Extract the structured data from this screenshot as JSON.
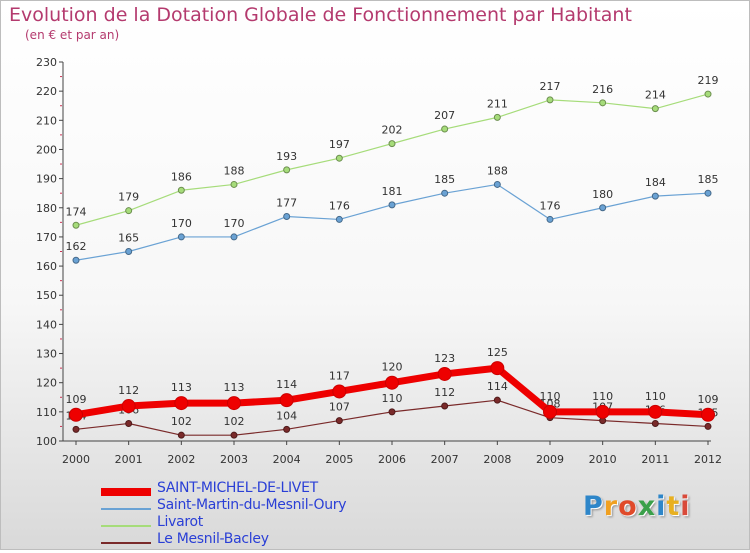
{
  "header": {
    "title": "Evolution de la Dotation Globale de Fonctionnement par Habitant",
    "subtitle": "(en € et par an)"
  },
  "brand": {
    "text": "Proxiti",
    "letter_colors": [
      "#2e86c9",
      "#f0a020",
      "#e04b2a",
      "#3aa04a",
      "#2e86c9",
      "#e8b020",
      "#d94a3a"
    ]
  },
  "chart_data": {
    "type": "line",
    "title": "Evolution de la Dotation Globale de Fonctionnement par Habitant",
    "subtitle": "(en € et par an)",
    "xlabel": "",
    "ylabel": "",
    "x": [
      "2000",
      "2001",
      "2002",
      "2003",
      "2004",
      "2005",
      "2006",
      "2007",
      "2008",
      "2009",
      "2010",
      "2011",
      "2012"
    ],
    "y_ticks": [
      "100",
      "110",
      "120",
      "130",
      "140",
      "150",
      "160",
      "170",
      "180",
      "190",
      "200",
      "210",
      "220",
      "230"
    ],
    "ylim": [
      100,
      230
    ],
    "grid": false,
    "legend_position": "bottom-left",
    "series": [
      {
        "name": "SAINT-MICHEL-DE-LIVET",
        "color": "#ee0000",
        "values": [
          109,
          112,
          113,
          113,
          114,
          117,
          120,
          123,
          125,
          110,
          110,
          110,
          109
        ],
        "labels": [
          "109",
          "112",
          "113",
          "113",
          "114",
          "117",
          "120",
          "123",
          "125",
          "110",
          "110",
          "110",
          "109"
        ]
      },
      {
        "name": "Saint-Martin-du-Mesnil-Oury",
        "color": "#6aa2d4",
        "values": [
          162,
          165,
          170,
          170,
          177,
          176,
          181,
          185,
          188,
          176,
          180,
          184,
          185
        ],
        "labels": [
          "162",
          "165",
          "170",
          "170",
          "177",
          "176",
          "181",
          "185",
          "188",
          "176",
          "180",
          "184",
          "185"
        ]
      },
      {
        "name": "Livarot",
        "color": "#a6dc7a",
        "values": [
          174,
          179,
          186,
          188,
          193,
          197,
          202,
          207,
          211,
          217,
          216,
          214,
          219
        ],
        "labels": [
          "174",
          "179",
          "186",
          "188",
          "193",
          "197",
          "202",
          "207",
          "211",
          "217",
          "216",
          "214",
          "219"
        ]
      },
      {
        "name": "Le Mesnil-Bacley",
        "color": "#7a2a2a",
        "values": [
          104,
          106,
          102,
          102,
          104,
          107,
          110,
          112,
          114,
          108,
          107,
          106,
          105
        ],
        "labels": [
          "104",
          "106",
          "102",
          "102",
          "104",
          "107",
          "110",
          "112",
          "114",
          "108",
          "107",
          "106",
          "105"
        ]
      }
    ]
  }
}
